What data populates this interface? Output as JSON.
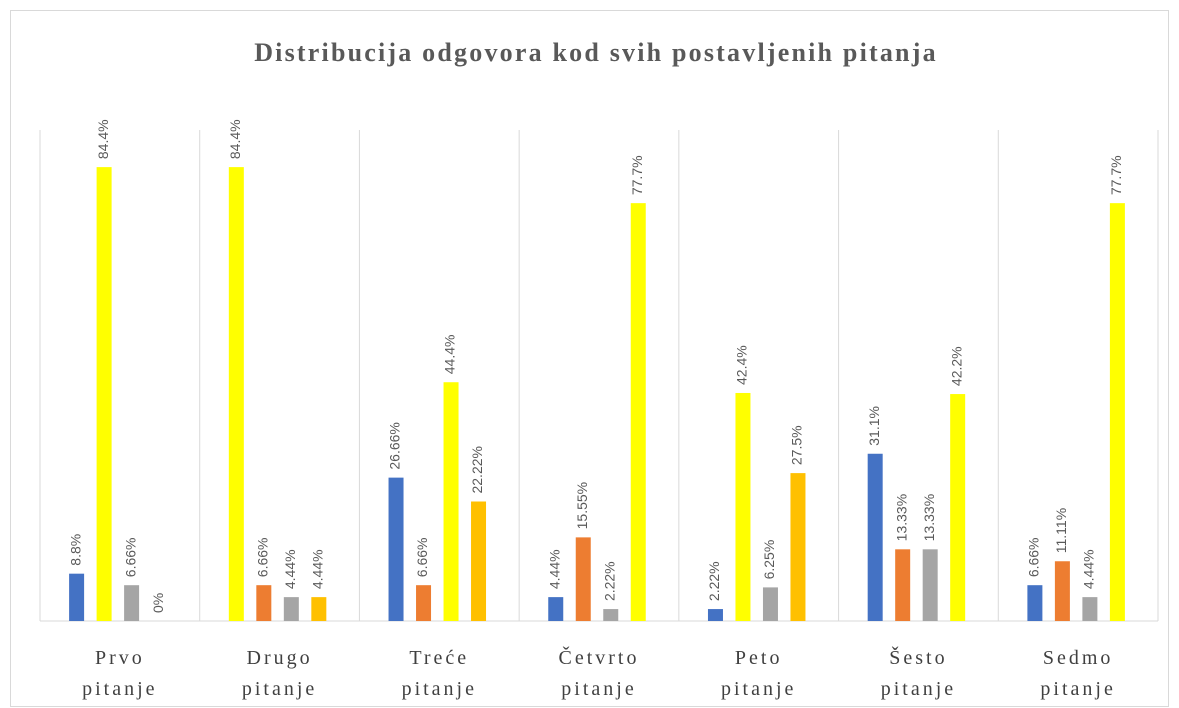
{
  "chart_data": {
    "type": "bar",
    "title": "Distribucija odgovora kod svih postavljenih pitanja",
    "categories": [
      "Prvo pitanje",
      "Drugo pitanje",
      "Treće pitanje",
      "Četvrto pitanje",
      "Peto pitanje",
      "Šesto pitanje",
      "Sedmo pitanje"
    ],
    "ylim": [
      0,
      90
    ],
    "series": [
      {
        "values": [
          8.8,
          84.4,
          26.66,
          4.44,
          2.22,
          31.1,
          6.66
        ],
        "value_labels": [
          "8.8%",
          "84.4%",
          "26.66%",
          "4.44%",
          "2.22%",
          "31.1%",
          "6.66%"
        ],
        "colors": [
          "#4472c4",
          "#ffff00",
          "#4472c4",
          "#4472c4",
          "#4472c4",
          "#4472c4",
          "#4472c4"
        ]
      },
      {
        "values": [
          84.4,
          6.66,
          6.66,
          15.55,
          42.4,
          13.33,
          11.11
        ],
        "value_labels": [
          "84.4%",
          "6.66%",
          "6.66%",
          "15.55%",
          "42.4%",
          "13.33%",
          "11.11%"
        ],
        "colors": [
          "#ffff00",
          "#ed7d31",
          "#ed7d31",
          "#ed7d31",
          "#ffff00",
          "#ed7d31",
          "#ed7d31"
        ]
      },
      {
        "values": [
          6.66,
          4.44,
          44.4,
          2.22,
          6.25,
          13.33,
          4.44
        ],
        "value_labels": [
          "6.66%",
          "4.44%",
          "44.4%",
          "2.22%",
          "6.25%",
          "13.33%",
          "4.44%"
        ],
        "colors": [
          "#a5a5a5",
          "#a5a5a5",
          "#ffff00",
          "#a5a5a5",
          "#a5a5a5",
          "#a5a5a5",
          "#a5a5a5"
        ]
      },
      {
        "values": [
          0,
          4.44,
          22.22,
          77.7,
          27.5,
          42.2,
          77.7
        ],
        "value_labels": [
          "0%",
          "4.44%",
          "22.22%",
          "77.7%",
          "27.5%",
          "42.2%",
          "77.7%"
        ],
        "colors": [
          "#ffc000",
          "#ffc000",
          "#ffc000",
          "#ffff00",
          "#ffc000",
          "#ffff00",
          "#ffff00"
        ]
      }
    ]
  }
}
